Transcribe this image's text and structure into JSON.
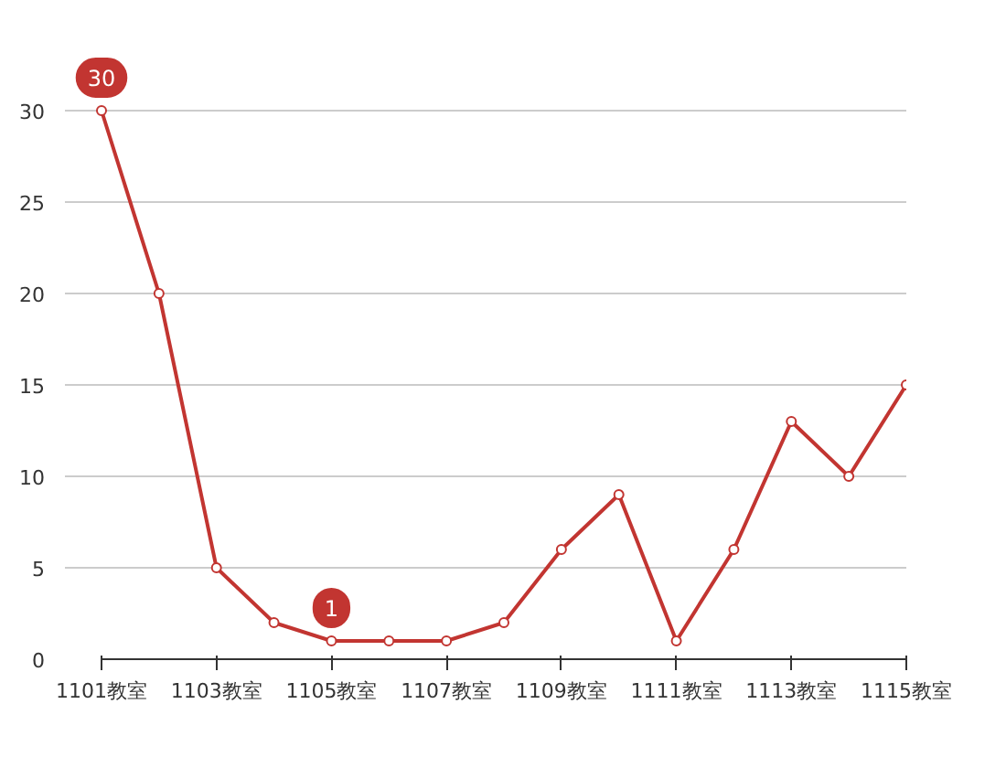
{
  "chart_data": {
    "type": "line",
    "categories": [
      "1101教室",
      null,
      "1103教室",
      null,
      "1105教室",
      null,
      "1107教室",
      null,
      "1109教室",
      null,
      "1111教室",
      null,
      "1113教室",
      null,
      "1115教室"
    ],
    "series": [
      {
        "color": "#c23531",
        "values": [
          30,
          20,
          5,
          2,
          1,
          1,
          1,
          2,
          6,
          9,
          1,
          6,
          13,
          10,
          15
        ]
      }
    ],
    "ylim": [
      0,
      30
    ],
    "yticks": [
      0,
      5,
      10,
      15,
      20,
      25,
      30
    ],
    "grid": "y",
    "marker": "circle",
    "line_style": "solid",
    "annotations": [
      {
        "text": "30",
        "x": "1101教室",
        "y": 30
      },
      {
        "text": "1",
        "x": "1105教室",
        "y": 1
      }
    ]
  }
}
